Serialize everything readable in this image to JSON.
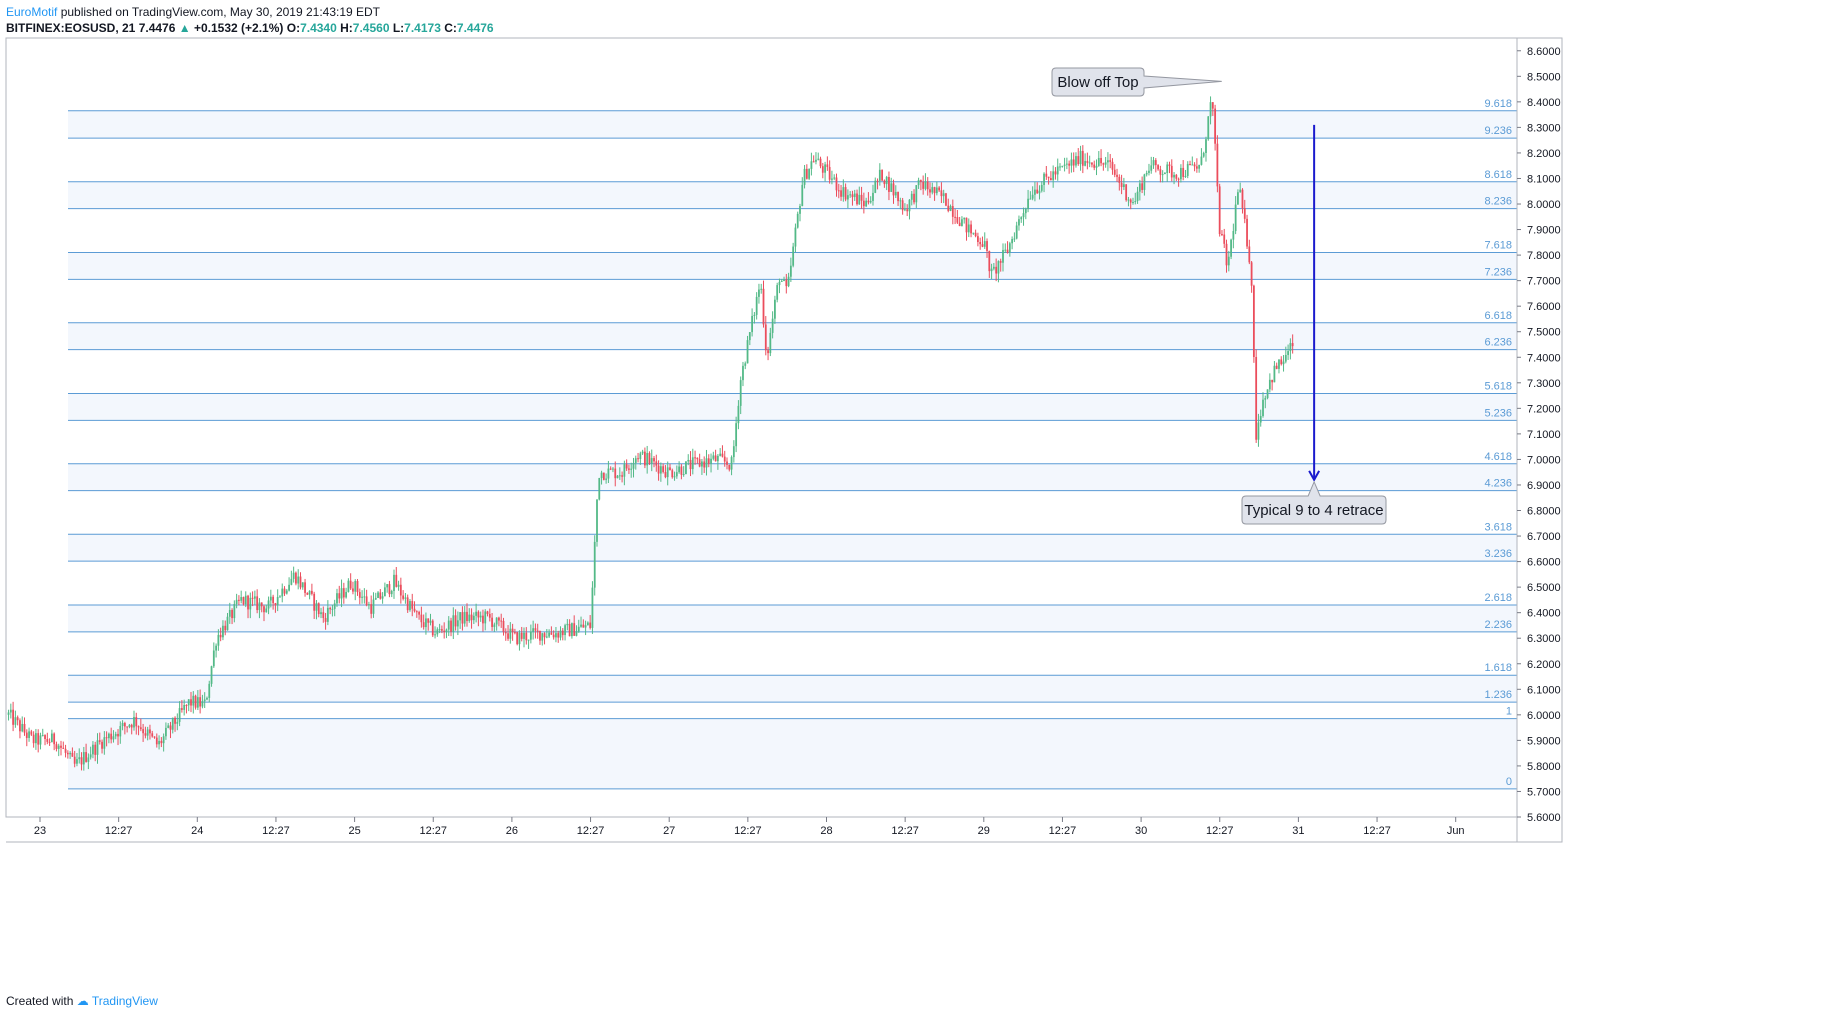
{
  "header": {
    "author": "EuroMotif",
    "published": "published on TradingView.com, May 30, 2019 21:43:19 EDT",
    "symbol": "BITFINEX:EOSUSD, 21",
    "last": "7.4476",
    "change_arrow": "▲",
    "change": "+0.1532 (+2.1%)",
    "o_label": "O:",
    "o": "7.4340",
    "h_label": "H:",
    "h": "7.4560",
    "l_label": "L:",
    "l": "7.4173",
    "c_label": "C:",
    "c": "7.4476"
  },
  "footer": {
    "created_with": "Created with",
    "brand": "TradingView"
  },
  "colors": {
    "up": "#53b987",
    "down": "#eb4d5c",
    "fib_line": "#5b9bd5",
    "fib_band": "#f3f7fd",
    "arrow": "#1a1acd"
  },
  "chart_data": {
    "type": "candlestick",
    "ylim": [
      5.6,
      8.65
    ],
    "price_ticks": [
      "8.6000",
      "8.5000",
      "8.4000",
      "8.3000",
      "8.2000",
      "8.1000",
      "8.0000",
      "7.9000",
      "7.8000",
      "7.7000",
      "7.6000",
      "7.5000",
      "7.4000",
      "7.3000",
      "7.2000",
      "7.1000",
      "7.0000",
      "6.9000",
      "6.8000",
      "6.7000",
      "6.6000",
      "6.5000",
      "6.4000",
      "6.3000",
      "6.2000",
      "6.1000",
      "6.0000",
      "5.9000",
      "5.8000",
      "5.7000",
      "5.6000"
    ],
    "time_ticks": [
      {
        "label": "23",
        "t": 0
      },
      {
        "label": "12:27",
        "t": 0.5
      },
      {
        "label": "24",
        "t": 1
      },
      {
        "label": "12:27",
        "t": 1.5
      },
      {
        "label": "25",
        "t": 2
      },
      {
        "label": "12:27",
        "t": 2.5
      },
      {
        "label": "26",
        "t": 3
      },
      {
        "label": "12:27",
        "t": 3.5
      },
      {
        "label": "27",
        "t": 4
      },
      {
        "label": "12:27",
        "t": 4.5
      },
      {
        "label": "28",
        "t": 5
      },
      {
        "label": "12:27",
        "t": 5.5
      },
      {
        "label": "29",
        "t": 6
      },
      {
        "label": "12:27",
        "t": 6.5
      },
      {
        "label": "30",
        "t": 7
      },
      {
        "label": "12:27",
        "t": 7.5
      },
      {
        "label": "31",
        "t": 8
      },
      {
        "label": "12:27",
        "t": 8.5
      },
      {
        "label": "Jun",
        "t": 9
      }
    ],
    "fib_levels": [
      {
        "label": "9.618",
        "price": 8.365
      },
      {
        "label": "9.236",
        "price": 8.258
      },
      {
        "label": "8.618",
        "price": 8.087
      },
      {
        "label": "8.236",
        "price": 7.982
      },
      {
        "label": "7.618",
        "price": 7.81
      },
      {
        "label": "7.236",
        "price": 7.705
      },
      {
        "label": "6.618",
        "price": 7.535
      },
      {
        "label": "6.236",
        "price": 7.43
      },
      {
        "label": "5.618",
        "price": 7.258
      },
      {
        "label": "5.236",
        "price": 7.153
      },
      {
        "label": "4.618",
        "price": 6.983
      },
      {
        "label": "4.236",
        "price": 6.878
      },
      {
        "label": "3.618",
        "price": 6.707
      },
      {
        "label": "3.236",
        "price": 6.602
      },
      {
        "label": "2.618",
        "price": 6.43
      },
      {
        "label": "2.236",
        "price": 6.325
      },
      {
        "label": "1.618",
        "price": 6.155
      },
      {
        "label": "1.236",
        "price": 6.05
      },
      {
        "label": "1",
        "price": 5.985
      },
      {
        "label": "0",
        "price": 5.71
      }
    ],
    "anchors": [
      [
        -0.2,
        6.0
      ],
      [
        -0.05,
        5.9
      ],
      [
        0.1,
        5.9
      ],
      [
        0.22,
        5.8
      ],
      [
        0.4,
        5.9
      ],
      [
        0.6,
        5.98
      ],
      [
        0.75,
        5.88
      ],
      [
        0.95,
        6.05
      ],
      [
        1.05,
        6.04
      ],
      [
        1.12,
        6.3
      ],
      [
        1.28,
        6.45
      ],
      [
        1.45,
        6.42
      ],
      [
        1.62,
        6.55
      ],
      [
        1.8,
        6.38
      ],
      [
        1.98,
        6.52
      ],
      [
        2.1,
        6.42
      ],
      [
        2.25,
        6.52
      ],
      [
        2.4,
        6.38
      ],
      [
        2.52,
        6.32
      ],
      [
        2.68,
        6.38
      ],
      [
        2.85,
        6.38
      ],
      [
        3.02,
        6.3
      ],
      [
        3.18,
        6.32
      ],
      [
        3.28,
        6.32
      ],
      [
        3.5,
        6.35
      ],
      [
        3.55,
        6.95
      ],
      [
        3.7,
        6.95
      ],
      [
        3.8,
        7.02
      ],
      [
        4.0,
        6.95
      ],
      [
        4.15,
        6.98
      ],
      [
        4.3,
        7.0
      ],
      [
        4.4,
        6.98
      ],
      [
        4.45,
        7.3
      ],
      [
        4.58,
        7.7
      ],
      [
        4.62,
        7.4
      ],
      [
        4.7,
        7.72
      ],
      [
        4.75,
        7.65
      ],
      [
        4.85,
        8.1
      ],
      [
        4.92,
        8.18
      ],
      [
        5.1,
        8.05
      ],
      [
        5.25,
        8.0
      ],
      [
        5.35,
        8.12
      ],
      [
        5.5,
        7.98
      ],
      [
        5.6,
        8.08
      ],
      [
        5.75,
        8.02
      ],
      [
        5.9,
        7.9
      ],
      [
        6.0,
        7.85
      ],
      [
        6.05,
        7.72
      ],
      [
        6.15,
        7.82
      ],
      [
        6.3,
        8.05
      ],
      [
        6.45,
        8.12
      ],
      [
        6.62,
        8.18
      ],
      [
        6.8,
        8.15
      ],
      [
        6.95,
        8.0
      ],
      [
        7.05,
        8.15
      ],
      [
        7.22,
        8.12
      ],
      [
        7.38,
        8.15
      ],
      [
        7.45,
        8.42
      ],
      [
        7.5,
        7.9
      ],
      [
        7.55,
        7.75
      ],
      [
        7.62,
        8.07
      ],
      [
        7.7,
        7.75
      ],
      [
        7.73,
        7.1
      ],
      [
        7.78,
        7.25
      ],
      [
        7.85,
        7.35
      ],
      [
        7.92,
        7.4
      ],
      [
        7.97,
        7.45
      ]
    ],
    "candle_step": 0.0145,
    "annotations": [
      {
        "text": "Blow off Top",
        "t": 7.5,
        "price": 8.48
      },
      {
        "text": "Typical 9 to 4 retrace",
        "arrow_t": 8.1,
        "from_price": 8.31,
        "to_price": 6.92
      }
    ]
  }
}
